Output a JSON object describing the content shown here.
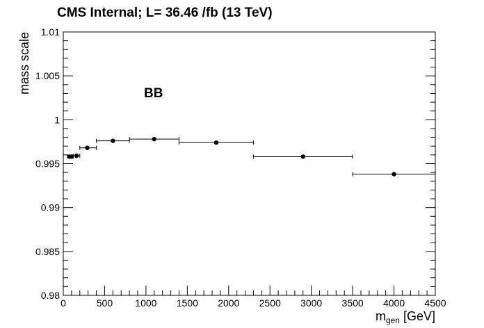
{
  "chart_data": {
    "type": "scatter",
    "title": "CMS Internal; L= 36.46 /fb (13 TeV)",
    "annotation": "BB",
    "xlabel": {
      "main": "m",
      "sub": "gen",
      "unit": " [GeV]"
    },
    "ylabel": "mass scale",
    "xlim": [
      0,
      4500
    ],
    "ylim": [
      0.98,
      1.01
    ],
    "x_ticks": [
      "0",
      "500",
      "1000",
      "1500",
      "2000",
      "2500",
      "3000",
      "3500",
      "4000",
      "4500"
    ],
    "y_ticks": [
      "0.98",
      "0.985",
      "0.99",
      "0.995",
      "1",
      "1.005",
      "1.01"
    ],
    "grid": false,
    "points": [
      {
        "x": 75,
        "xlo": 50,
        "xhi": 100,
        "y": 0.9958
      },
      {
        "x": 100,
        "xlo": 100,
        "xhi": 120,
        "y": 0.9958
      },
      {
        "x": 160,
        "xlo": 120,
        "xhi": 200,
        "y": 0.9959
      },
      {
        "x": 290,
        "xlo": 200,
        "xhi": 400,
        "y": 0.9968
      },
      {
        "x": 600,
        "xlo": 400,
        "xhi": 800,
        "y": 0.9976
      },
      {
        "x": 1100,
        "xlo": 800,
        "xhi": 1400,
        "y": 0.9978
      },
      {
        "x": 1850,
        "xlo": 1400,
        "xhi": 2300,
        "y": 0.9974
      },
      {
        "x": 2900,
        "xlo": 2300,
        "xhi": 3500,
        "y": 0.9958
      },
      {
        "x": 4000,
        "xlo": 3500,
        "xhi": 4500,
        "y": 0.9938
      }
    ]
  }
}
